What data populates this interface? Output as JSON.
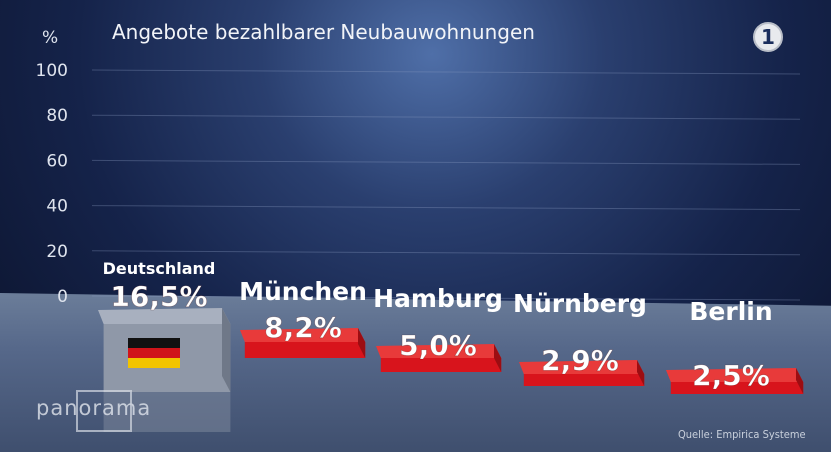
{
  "title": "Angebote bezahlbarer Neubauwohnungen",
  "unit_label": "%",
  "source": "Quelle: Empirica Systeme",
  "branding": {
    "broadcaster_logo_text": "1",
    "show_logo": "panorama"
  },
  "colors": {
    "bar_red": "#d8141c",
    "bar_red_top": "#e83a3a",
    "bar_red_side": "#9c0d12",
    "germany_box": "#8f98a8",
    "gridline": "#8a9ac0"
  },
  "chart_data": {
    "type": "bar",
    "title": "Angebote bezahlbarer Neubauwohnungen",
    "ylabel": "%",
    "ylim": [
      0,
      100
    ],
    "yticks": [
      0,
      20,
      40,
      60,
      80,
      100
    ],
    "grid": true,
    "categories": [
      "Deutschland",
      "München",
      "Hamburg",
      "Nürnberg",
      "Berlin"
    ],
    "values": [
      16.5,
      8.2,
      5.0,
      2.9,
      2.5
    ],
    "value_labels": [
      "16,5%",
      "8,2%",
      "5,0%",
      "2,9%",
      "2,5%"
    ],
    "highlight": {
      "category": "Deutschland",
      "icon": "germany-flag-icon"
    }
  }
}
